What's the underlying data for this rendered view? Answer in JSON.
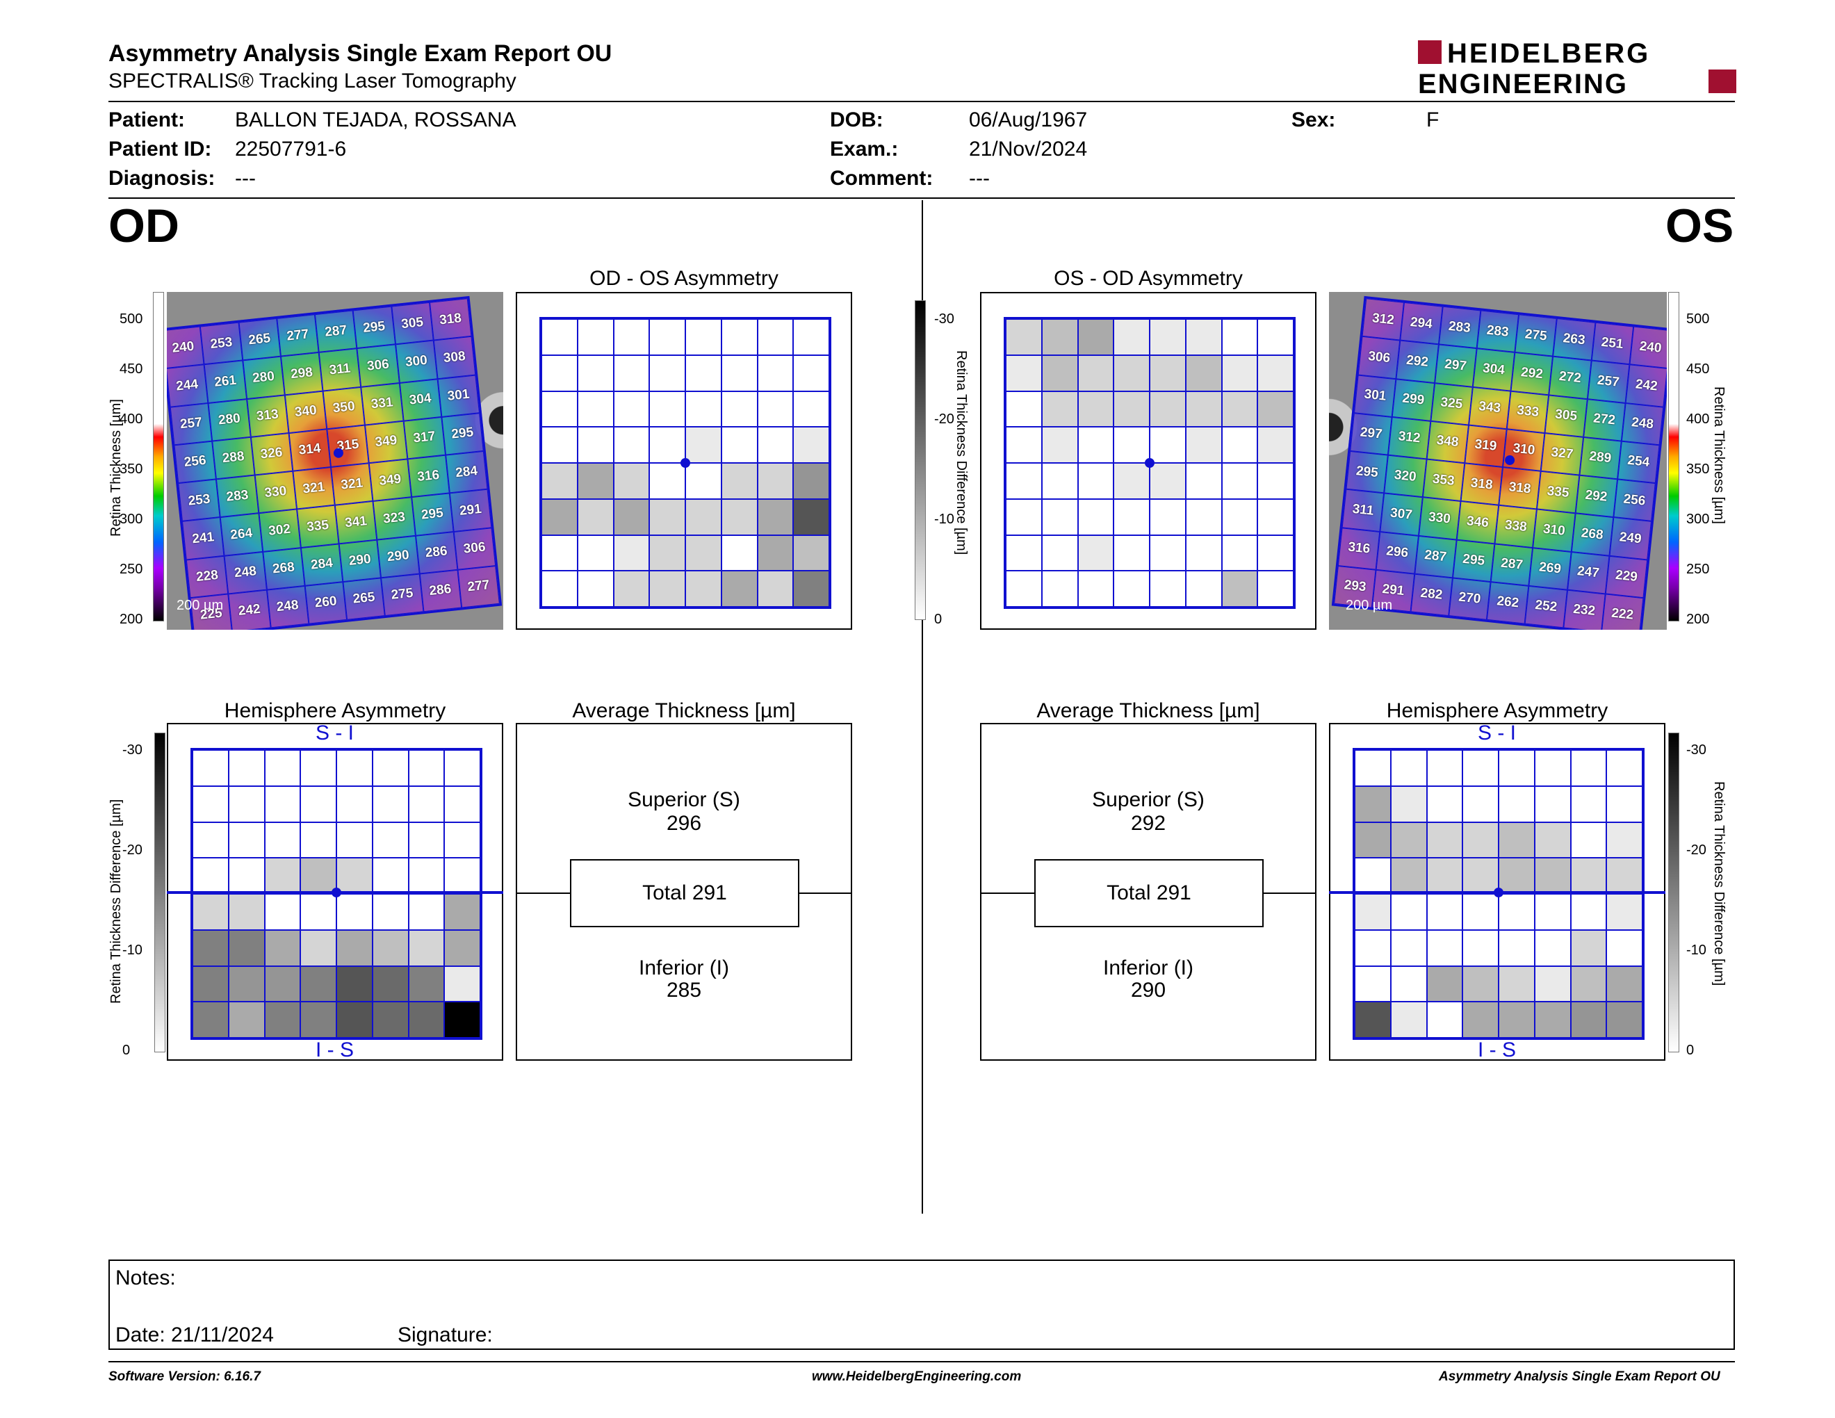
{
  "header": {
    "title": "Asymmetry Analysis Single Exam Report OU",
    "subtitle": "SPECTRALIS® Tracking Laser Tomography",
    "logo_line1": "HEIDELBERG",
    "logo_line2": "ENGINEERING"
  },
  "patient": {
    "patient_label": "Patient:",
    "patient_value": "BALLON TEJADA, ROSSANA",
    "id_label": "Patient ID:",
    "id_value": "22507791-6",
    "diagnosis_label": "Diagnosis:",
    "diagnosis_value": "---",
    "dob_label": "DOB:",
    "dob_value": "06/Aug/1967",
    "exam_label": "Exam.:",
    "exam_value": "21/Nov/2024",
    "comment_label": "Comment:",
    "comment_value": "---",
    "sex_label": "Sex:",
    "sex_value": "F"
  },
  "od": {
    "eye_label": "OD",
    "asym_title": "OD - OS Asymmetry",
    "hemi_title": "Hemisphere Asymmetry",
    "avg_title": "Average Thickness [µm]",
    "superior_label": "Superior (S)",
    "superior_value": "296",
    "total_label": "Total 291",
    "inferior_label": "Inferior (I)",
    "inferior_value": "285",
    "hemi_top": "S - I",
    "hemi_bottom": "I - S",
    "scale_bar": "200 µm",
    "thickness": [
      [
        240,
        253,
        265,
        277,
        287,
        295,
        305,
        318
      ],
      [
        244,
        261,
        280,
        298,
        311,
        306,
        300,
        308
      ],
      [
        257,
        280,
        313,
        340,
        350,
        331,
        304,
        301
      ],
      [
        256,
        288,
        326,
        314,
        315,
        349,
        317,
        295
      ],
      [
        253,
        283,
        330,
        321,
        321,
        349,
        316,
        284
      ],
      [
        241,
        264,
        302,
        335,
        341,
        323,
        295,
        291
      ],
      [
        228,
        248,
        268,
        284,
        290,
        290,
        286,
        306
      ],
      [
        225,
        242,
        248,
        260,
        265,
        275,
        286,
        277
      ]
    ],
    "asym_gray": [
      [
        0,
        0,
        0,
        0,
        0,
        0,
        0,
        0
      ],
      [
        0,
        0,
        0,
        0,
        0,
        0,
        0,
        0
      ],
      [
        0,
        0,
        0,
        0,
        0,
        0,
        0,
        0
      ],
      [
        0,
        0,
        0,
        0,
        1,
        0,
        0,
        1
      ],
      [
        2,
        4,
        2,
        0,
        0,
        2,
        2,
        5
      ],
      [
        4,
        2,
        4,
        2,
        2,
        2,
        4,
        8
      ],
      [
        0,
        0,
        1,
        2,
        2,
        0,
        4,
        3
      ],
      [
        0,
        0,
        2,
        2,
        2,
        4,
        2,
        6
      ]
    ],
    "hemi_gray": [
      [
        0,
        0,
        0,
        0,
        0,
        0,
        0,
        0
      ],
      [
        0,
        0,
        0,
        0,
        0,
        0,
        0,
        0
      ],
      [
        0,
        0,
        0,
        0,
        0,
        0,
        0,
        0
      ],
      [
        0,
        0,
        2,
        3,
        2,
        0,
        0,
        0
      ],
      [
        2,
        2,
        0,
        0,
        0,
        0,
        0,
        4
      ],
      [
        6,
        6,
        4,
        2,
        4,
        3,
        2,
        4
      ],
      [
        6,
        5,
        5,
        6,
        8,
        7,
        6,
        1
      ],
      [
        6,
        4,
        6,
        6,
        8,
        7,
        7,
        12
      ]
    ]
  },
  "os": {
    "eye_label": "OS",
    "asym_title": "OS - OD Asymmetry",
    "hemi_title": "Hemisphere Asymmetry",
    "avg_title": "Average Thickness [µm]",
    "superior_label": "Superior (S)",
    "superior_value": "292",
    "total_label": "Total 291",
    "inferior_label": "Inferior (I)",
    "inferior_value": "290",
    "hemi_top": "S - I",
    "hemi_bottom": "I - S",
    "scale_bar": "200 µm",
    "thickness": [
      [
        312,
        294,
        283,
        283,
        275,
        263,
        251,
        240
      ],
      [
        306,
        292,
        297,
        304,
        292,
        272,
        257,
        242
      ],
      [
        301,
        299,
        325,
        343,
        333,
        305,
        272,
        248
      ],
      [
        297,
        312,
        348,
        319,
        310,
        327,
        289,
        254
      ],
      [
        295,
        320,
        353,
        318,
        318,
        335,
        292,
        256
      ],
      [
        311,
        307,
        330,
        346,
        338,
        310,
        268,
        249
      ],
      [
        316,
        296,
        287,
        295,
        287,
        269,
        247,
        229
      ],
      [
        293,
        291,
        282,
        270,
        262,
        252,
        232,
        222
      ]
    ],
    "asym_gray": [
      [
        2,
        3,
        4,
        1,
        1,
        1,
        0,
        0
      ],
      [
        1,
        3,
        2,
        2,
        2,
        3,
        1,
        1
      ],
      [
        0,
        2,
        2,
        2,
        2,
        2,
        2,
        3
      ],
      [
        0,
        1,
        0,
        0,
        0,
        1,
        0,
        1
      ],
      [
        0,
        0,
        0,
        1,
        1,
        0,
        0,
        0
      ],
      [
        0,
        0,
        0,
        0,
        0,
        0,
        0,
        0
      ],
      [
        0,
        0,
        1,
        0,
        0,
        0,
        0,
        0
      ],
      [
        0,
        0,
        0,
        0,
        0,
        0,
        3,
        0
      ]
    ],
    "hemi_gray": [
      [
        0,
        0,
        0,
        0,
        0,
        0,
        0,
        0
      ],
      [
        4,
        1,
        0,
        0,
        0,
        0,
        0,
        0
      ],
      [
        4,
        3,
        2,
        2,
        3,
        2,
        0,
        1
      ],
      [
        0,
        3,
        2,
        2,
        3,
        3,
        2,
        2
      ],
      [
        1,
        0,
        0,
        0,
        0,
        0,
        0,
        1
      ],
      [
        0,
        0,
        0,
        0,
        0,
        0,
        2,
        0
      ],
      [
        0,
        0,
        4,
        3,
        2,
        1,
        3,
        4
      ],
      [
        8,
        1,
        0,
        4,
        4,
        4,
        5,
        5
      ]
    ]
  },
  "scales": {
    "thickness_label": "Retina Thickness [µm]",
    "thickness_ticks": [
      "500",
      "450",
      "400",
      "350",
      "300",
      "250",
      "200"
    ],
    "diff_label": "Retina Thickness Difference [µm]",
    "diff_ticks": [
      "-30",
      "-20",
      "-10",
      "0"
    ]
  },
  "notes": {
    "notes_label": "Notes:",
    "date_label": "Date: 21/11/2024",
    "signature_label": "Signature:"
  },
  "footer": {
    "version": "Software Version: 6.16.7",
    "website": "www.HeidelbergEngineering.com",
    "report": "Asymmetry Analysis Single Exam Report OU"
  },
  "colors": {
    "grid_blue": "#1010d0",
    "logo_red": "#a01030"
  }
}
